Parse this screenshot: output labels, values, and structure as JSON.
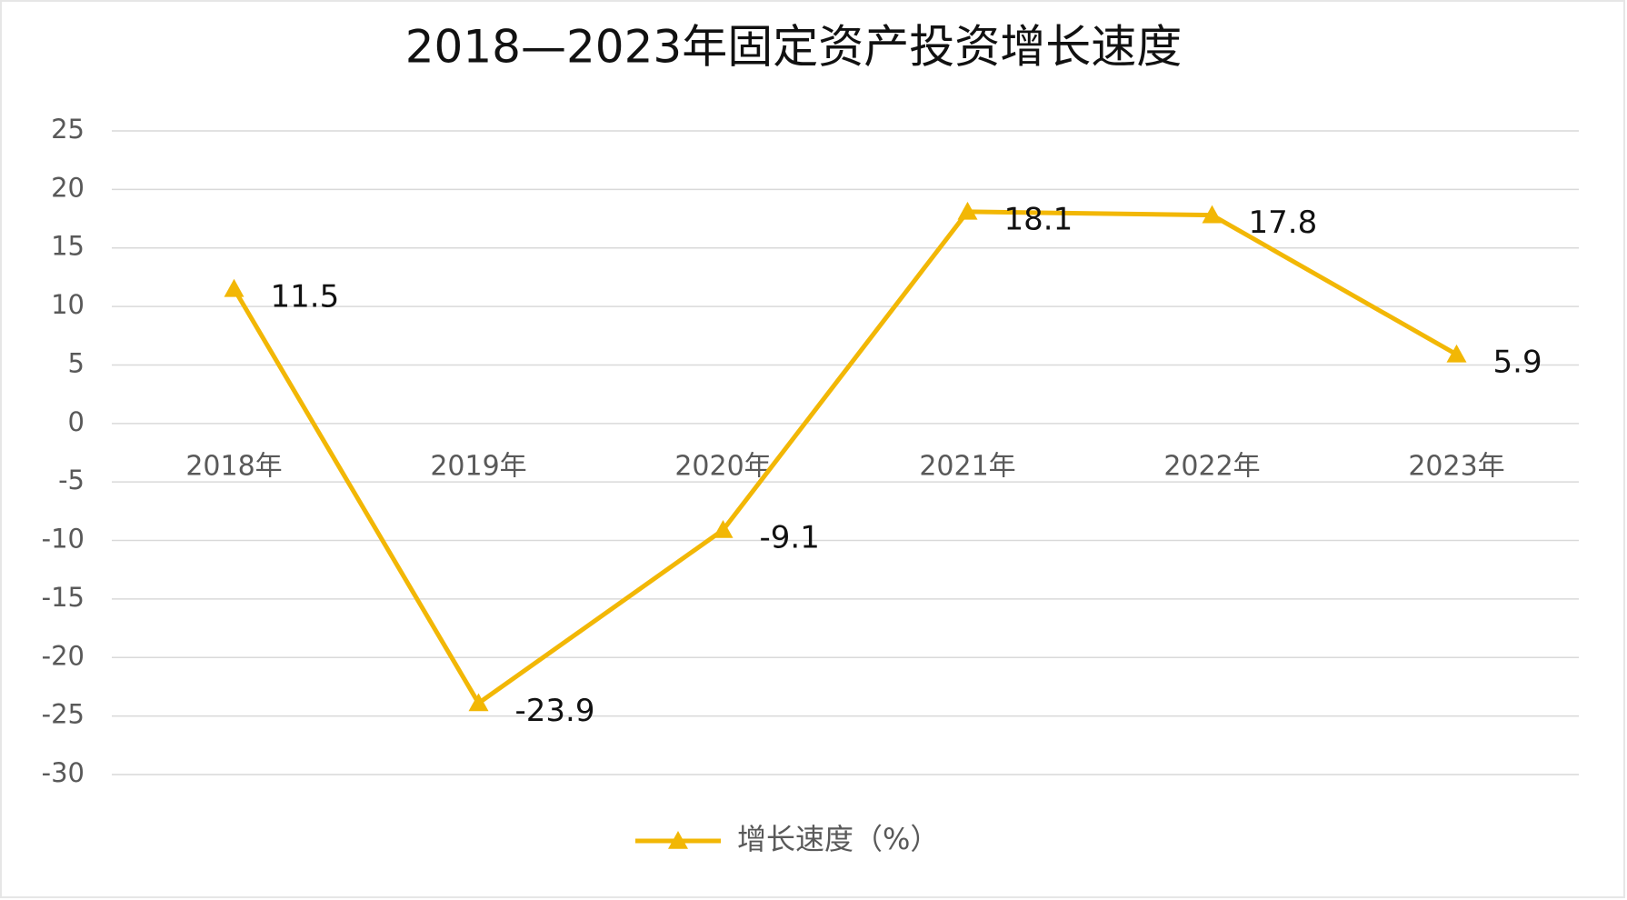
{
  "chart_data": {
    "type": "line",
    "title": "2018—2023年固定资产投资增长速度",
    "categories": [
      "2018年",
      "2019年",
      "2020年",
      "2021年",
      "2022年",
      "2023年"
    ],
    "series": [
      {
        "name": "增长速度（%）",
        "color": "#f2b705",
        "values": [
          11.5,
          -23.9,
          -9.1,
          18.1,
          17.8,
          5.9
        ]
      }
    ],
    "ylim": [
      -30,
      25
    ],
    "yticks": [
      -30,
      -25,
      -20,
      -15,
      -10,
      -5,
      0,
      5,
      10,
      15,
      20,
      25
    ],
    "grid": true,
    "legend": "bottom"
  }
}
